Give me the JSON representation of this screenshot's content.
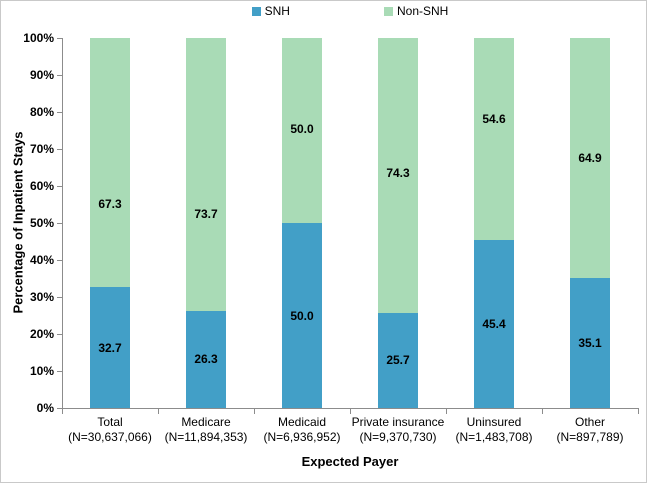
{
  "figure": {
    "background": "#ffffff",
    "border_color": "#c9c9c9",
    "axis_color": "#8c8c8c"
  },
  "legend": {
    "position": "top",
    "items": [
      {
        "label": "SNH",
        "color": "#429fc7"
      },
      {
        "label": "Non-SNH",
        "color": "#a9dbb6"
      }
    ]
  },
  "chart_data": {
    "type": "bar",
    "stacked": true,
    "title": "",
    "xlabel": "Expected Payer",
    "ylabel": "Percentage of Inpatient Stays",
    "ylim": [
      0,
      100
    ],
    "ytick_step": 10,
    "ytick_suffix": "%",
    "grid": false,
    "legend_position": "top",
    "categories": [
      {
        "name": "Total",
        "n": "(N=30,637,066)"
      },
      {
        "name": "Medicare",
        "n": "(N=11,894,353)"
      },
      {
        "name": "Medicaid",
        "n": "(N=6,936,952)"
      },
      {
        "name": "Private insurance",
        "n": "(N=9,370,730)"
      },
      {
        "name": "Uninsured",
        "n": "(N=1,483,708)"
      },
      {
        "name": "Other",
        "n": "(N=897,789)"
      }
    ],
    "series": [
      {
        "name": "SNH",
        "color": "#429fc7",
        "values": [
          32.7,
          26.3,
          50.0,
          25.7,
          45.4,
          35.1
        ]
      },
      {
        "name": "Non-SNH",
        "color": "#a9dbb6",
        "values": [
          67.3,
          73.7,
          50.0,
          74.3,
          54.6,
          64.9
        ]
      }
    ],
    "label_positions": {
      "SNH": [
        16.35,
        13.15,
        25.0,
        12.85,
        22.7,
        17.55
      ],
      "Non-SNH": [
        55.1,
        52.4,
        75.4,
        63.5,
        78.1,
        67.6
      ]
    }
  }
}
